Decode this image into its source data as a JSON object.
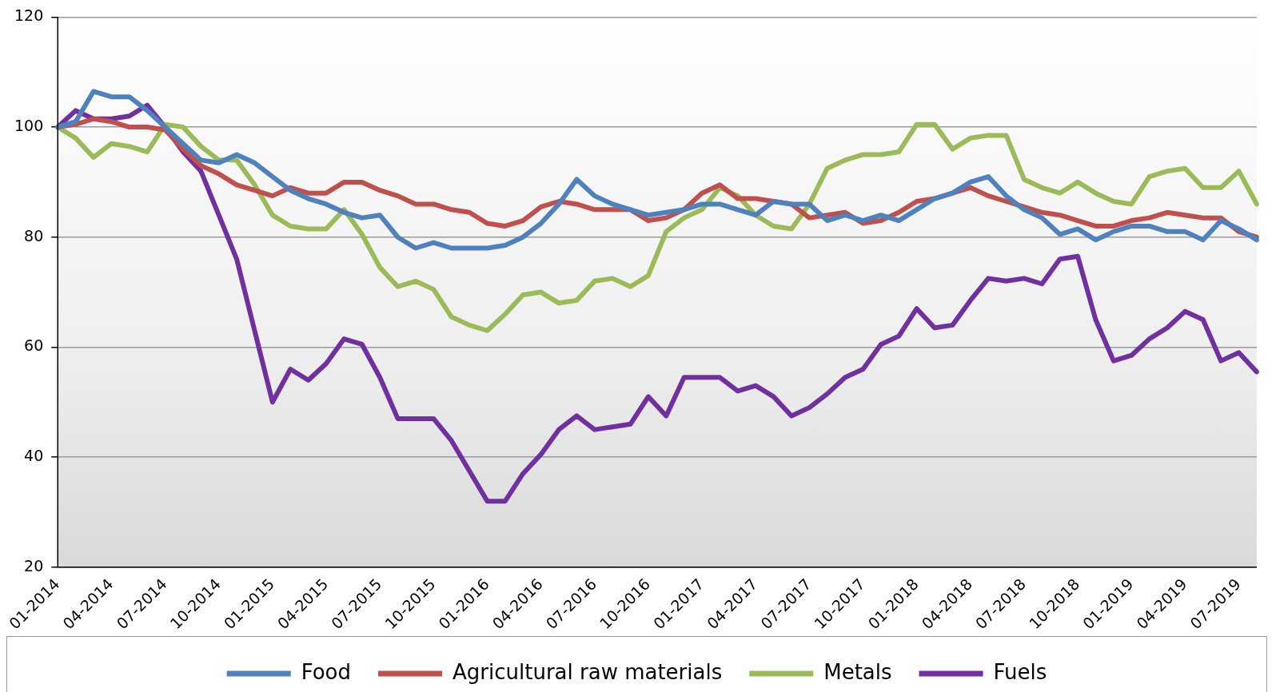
{
  "chart_data": {
    "type": "line",
    "categories": [
      "01-2014",
      null,
      null,
      "04-2014",
      null,
      null,
      "07-2014",
      null,
      null,
      "10-2014",
      null,
      null,
      "01-2015",
      null,
      null,
      "04-2015",
      null,
      null,
      "07-2015",
      null,
      null,
      "10-2015",
      null,
      null,
      "01-2016",
      null,
      null,
      "04-2016",
      null,
      null,
      "07-2016",
      null,
      null,
      "10-2016",
      null,
      null,
      "01-2017",
      null,
      null,
      "04-2017",
      null,
      null,
      "07-2017",
      null,
      null,
      "10-2017",
      null,
      null,
      "01-2018",
      null,
      null,
      "04-2018",
      null,
      null,
      "07-2018",
      null,
      null,
      "10-2018",
      null,
      null,
      "01-2019",
      null,
      null,
      "04-2019",
      null,
      null,
      "07-2019",
      null
    ],
    "series": [
      {
        "name": "Food",
        "color": "#4f81bd",
        "values": [
          100,
          101,
          106.5,
          105.5,
          105.5,
          103,
          100,
          97,
          94,
          93.5,
          95,
          93.5,
          91,
          88.5,
          87,
          86,
          84.5,
          83.5,
          84,
          80,
          78,
          79,
          78,
          78,
          78,
          78.5,
          80,
          82.5,
          86,
          90.5,
          87.5,
          86,
          85,
          84,
          84.5,
          85,
          86,
          86,
          85,
          84,
          86.5,
          86,
          86,
          83,
          84,
          83,
          84,
          83,
          85,
          87,
          88,
          90,
          91,
          87.5,
          85,
          83.5,
          80.5,
          81.5,
          79.5,
          81,
          82,
          82,
          81,
          81,
          79.5,
          83,
          81.5,
          79.5
        ]
      },
      {
        "name": "Agricultural raw materials",
        "color": "#c0504d",
        "values": [
          100,
          100.5,
          101.5,
          101,
          100,
          100,
          99.5,
          96,
          93,
          91.5,
          89.5,
          88.5,
          87.5,
          89,
          88,
          88,
          90,
          90,
          88.5,
          87.5,
          86,
          86,
          85,
          84.5,
          82.5,
          82,
          83,
          85.5,
          86.5,
          86,
          85,
          85,
          85,
          83,
          83.5,
          85,
          88,
          89.5,
          87,
          87,
          86.5,
          86,
          83.5,
          84,
          84.5,
          82.5,
          83,
          84.5,
          86.5,
          87,
          88,
          89,
          87.5,
          86.5,
          85.5,
          84.5,
          84,
          83,
          82,
          82,
          83,
          83.5,
          84.5,
          84,
          83.5,
          83.5,
          81,
          80
        ]
      },
      {
        "name": "Metals",
        "color": "#9bbb59",
        "values": [
          100,
          98,
          94.5,
          97,
          96.5,
          95.5,
          100.5,
          100,
          96.5,
          94,
          94,
          89.5,
          84,
          82,
          81.5,
          81.5,
          85,
          80.5,
          74.5,
          71,
          72,
          70.5,
          65.5,
          64,
          63,
          66,
          69.5,
          70,
          68,
          68.5,
          72,
          72.5,
          71,
          73,
          81,
          83.5,
          85,
          89,
          87.5,
          84,
          82,
          81.5,
          86,
          92.5,
          94,
          95,
          95,
          95.5,
          100.5,
          100.5,
          96,
          98,
          98.5,
          98.5,
          90.5,
          89,
          88,
          90,
          88,
          86.5,
          86,
          91,
          92,
          92.5,
          89,
          89,
          92,
          86
        ]
      },
      {
        "name": "Fuels",
        "color": "#7030a0",
        "values": [
          100,
          103,
          101.5,
          101.5,
          102,
          104,
          100,
          95.5,
          92,
          84,
          76,
          63,
          50,
          56,
          54,
          57,
          61.5,
          60.5,
          54.5,
          47,
          47,
          47,
          43,
          37.5,
          32,
          32,
          37,
          40.5,
          45,
          47.5,
          45,
          45.5,
          46,
          51,
          47.5,
          54.5,
          54.5,
          54.5,
          52,
          53,
          51,
          47.5,
          49,
          51.5,
          54.5,
          56,
          60.5,
          62,
          67,
          63.5,
          64,
          68.5,
          72.5,
          72,
          72.5,
          71.5,
          76,
          76.5,
          65,
          57.5,
          58.5,
          61.5,
          63.5,
          66.5,
          65,
          57.5,
          59,
          55.5
        ]
      }
    ],
    "ylim": [
      20,
      120
    ],
    "yticks": [
      20,
      40,
      60,
      80,
      100,
      120
    ],
    "grid": "y",
    "legend": "bottom",
    "marker": "none",
    "line_style": "solid"
  }
}
